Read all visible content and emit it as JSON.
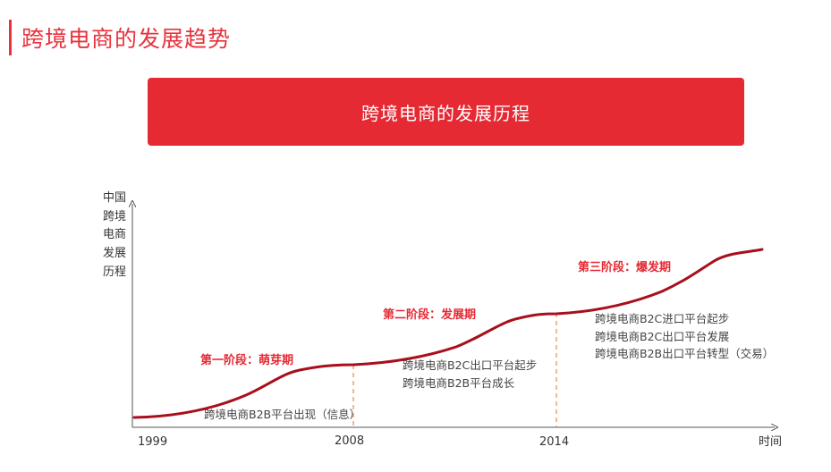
{
  "header": {
    "title": "跨境电商的发展趋势",
    "accent_color": "#e8323c"
  },
  "banner": {
    "text": "跨境电商的发展历程",
    "color": "#e52a34"
  },
  "diagram": {
    "y_axis_label": [
      "中国",
      "跨境",
      "电商",
      "发展",
      "历程"
    ],
    "x_axis_ticks": [
      "1999",
      "2008",
      "2014"
    ],
    "x_axis_end_label": "时间",
    "curve_color": "#a80f1c",
    "marker_color": "#f0883a",
    "stages": [
      {
        "title": "第一阶段：萌芽期",
        "items": [
          "跨境电商B2B平台出现（信息）"
        ]
      },
      {
        "title": "第二阶段：发展期",
        "items": [
          "跨境电商B2C出口平台起步",
          "跨境电商B2B平台成长"
        ]
      },
      {
        "title": "第三阶段：爆发期",
        "items": [
          "跨境电商B2C进口平台起步",
          "跨境电商B2C出口平台发展",
          "跨境电商B2B出口平台转型（交易）"
        ]
      }
    ]
  }
}
